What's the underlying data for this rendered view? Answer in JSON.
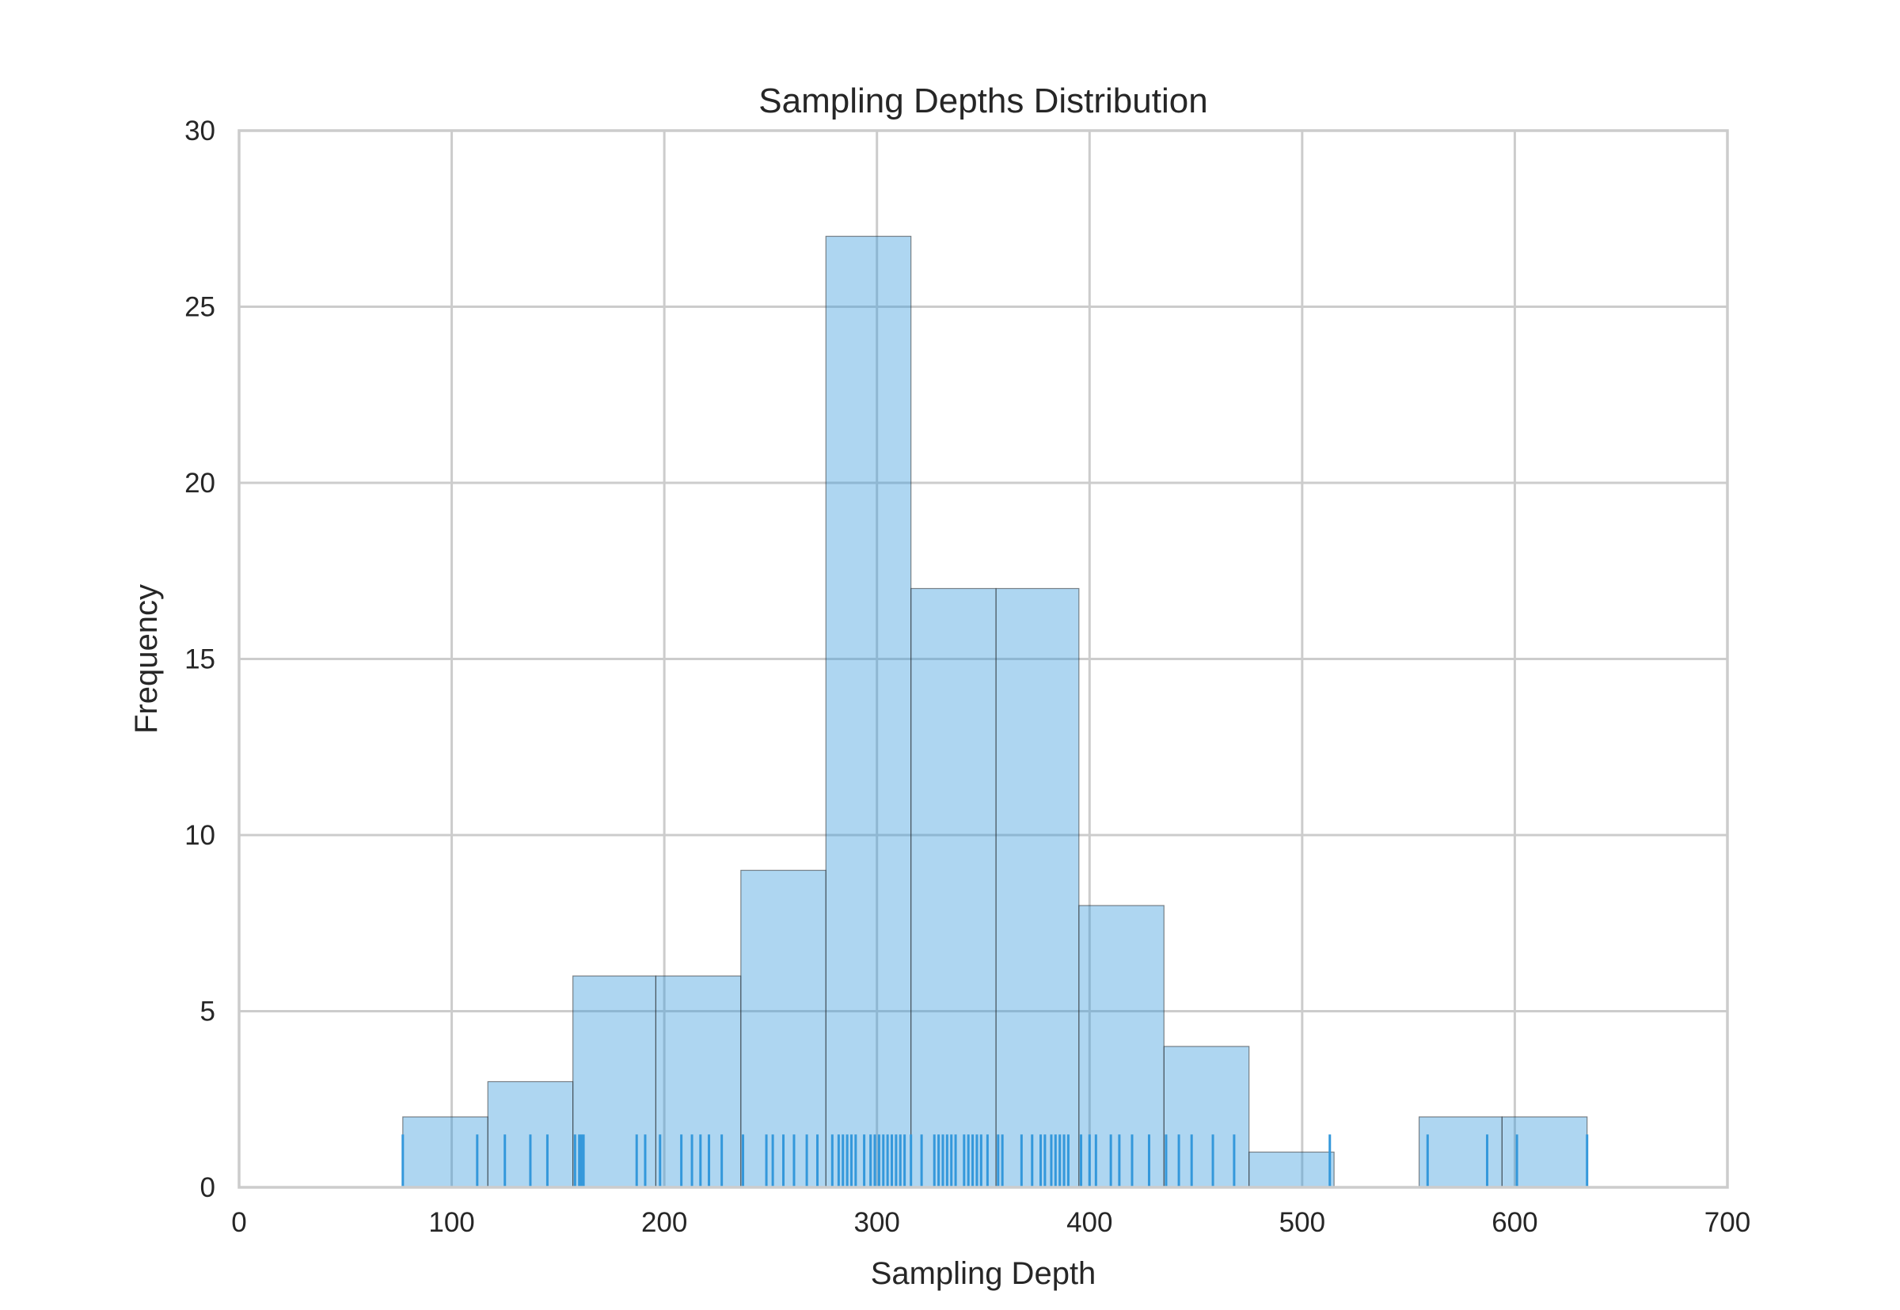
{
  "chart_data": {
    "type": "bar",
    "title": "Sampling Depths Distribution",
    "xlabel": "Sampling Depth",
    "ylabel": "Frequency",
    "xlim": [
      0,
      700
    ],
    "ylim": [
      0,
      30
    ],
    "xticks": [
      0,
      100,
      200,
      300,
      400,
      500,
      600,
      700
    ],
    "yticks": [
      0,
      5,
      10,
      15,
      20,
      25,
      30
    ],
    "grid": true,
    "bar_color": "#3498db",
    "bins": [
      {
        "start": 77,
        "end": 117,
        "count": 2
      },
      {
        "start": 117,
        "end": 157,
        "count": 3
      },
      {
        "start": 157,
        "end": 196,
        "count": 6
      },
      {
        "start": 196,
        "end": 236,
        "count": 6
      },
      {
        "start": 236,
        "end": 276,
        "count": 9
      },
      {
        "start": 276,
        "end": 316,
        "count": 27
      },
      {
        "start": 316,
        "end": 356,
        "count": 17
      },
      {
        "start": 356,
        "end": 395,
        "count": 17
      },
      {
        "start": 395,
        "end": 435,
        "count": 8
      },
      {
        "start": 435,
        "end": 475,
        "count": 4
      },
      {
        "start": 475,
        "end": 515,
        "count": 1
      },
      {
        "start": 515,
        "end": 555,
        "count": 0
      },
      {
        "start": 555,
        "end": 594,
        "count": 2
      },
      {
        "start": 594,
        "end": 634,
        "count": 2
      }
    ],
    "rug": [
      77,
      112,
      125,
      137,
      145,
      158,
      160,
      161,
      162,
      187,
      191,
      198,
      208,
      213,
      217,
      221,
      227,
      237,
      248,
      251,
      256,
      261,
      267,
      272,
      279,
      282,
      284,
      286,
      288,
      290,
      294,
      297,
      299,
      301,
      303,
      305,
      307,
      309,
      311,
      313,
      316,
      321,
      327,
      329,
      331,
      333,
      335,
      337,
      341,
      343,
      345,
      347,
      349,
      352,
      357,
      359,
      368,
      373,
      377,
      379,
      382,
      384,
      386,
      388,
      390,
      396,
      400,
      403,
      410,
      414,
      420,
      428,
      436,
      442,
      448,
      458,
      468,
      513,
      559,
      587,
      601,
      634
    ],
    "rug_height": 1.5
  }
}
